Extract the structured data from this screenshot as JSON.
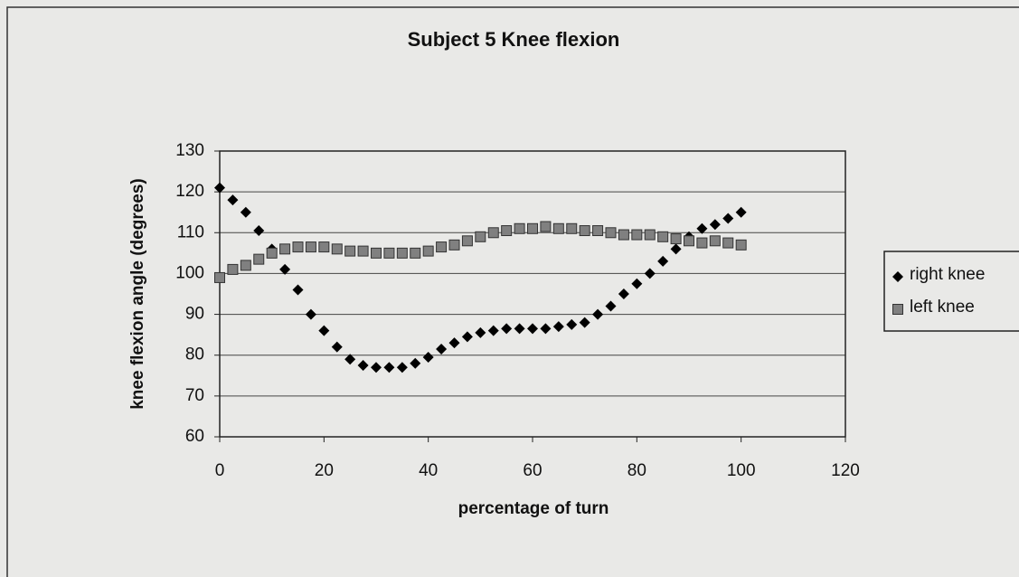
{
  "chart_data": {
    "type": "scatter",
    "title": "Subject 5 Knee flexion",
    "xlabel": "percentage of turn",
    "ylabel": "knee flexion angle (degrees)",
    "xlim": [
      0,
      120
    ],
    "xticks": [
      0,
      20,
      40,
      60,
      80,
      100,
      120
    ],
    "ylim": [
      60,
      130
    ],
    "yticks": [
      60,
      70,
      80,
      90,
      100,
      110,
      120,
      130
    ],
    "grid": true,
    "legend": "right",
    "x": [
      0,
      2.5,
      5,
      7.5,
      10,
      12.5,
      15,
      17.5,
      20,
      22.5,
      25,
      27.5,
      30,
      32.5,
      35,
      37.5,
      40,
      42.5,
      45,
      47.5,
      50,
      52.5,
      55,
      57.5,
      60,
      62.5,
      65,
      67.5,
      70,
      72.5,
      75,
      77.5,
      80,
      82.5,
      85,
      87.5,
      90,
      92.5,
      95,
      97.5,
      100
    ],
    "series": [
      {
        "name": "right knee",
        "color": "#000000",
        "marker": "diamond",
        "values": [
          121,
          118,
          115,
          110.5,
          106,
          101,
          96,
          90,
          86,
          82,
          79,
          77.5,
          77,
          77,
          77,
          78,
          79.5,
          81.5,
          83,
          84.5,
          85.5,
          86,
          86.5,
          86.5,
          86.5,
          86.5,
          87,
          87.5,
          88,
          90,
          92,
          95,
          97.5,
          100,
          103,
          106,
          109,
          111,
          112,
          113.5,
          115
        ]
      },
      {
        "name": "left knee",
        "color": "#808080",
        "marker": "square",
        "values": [
          99,
          101,
          102,
          103.5,
          105,
          106,
          106.5,
          106.5,
          106.5,
          106,
          105.5,
          105.5,
          105,
          105,
          105,
          105,
          105.5,
          106.5,
          107,
          108,
          109,
          110,
          110.5,
          111,
          111,
          111.5,
          111,
          111,
          110.5,
          110.5,
          110,
          109.5,
          109.5,
          109.5,
          109,
          108.5,
          108,
          107.5,
          108,
          107.5,
          107
        ]
      }
    ]
  }
}
